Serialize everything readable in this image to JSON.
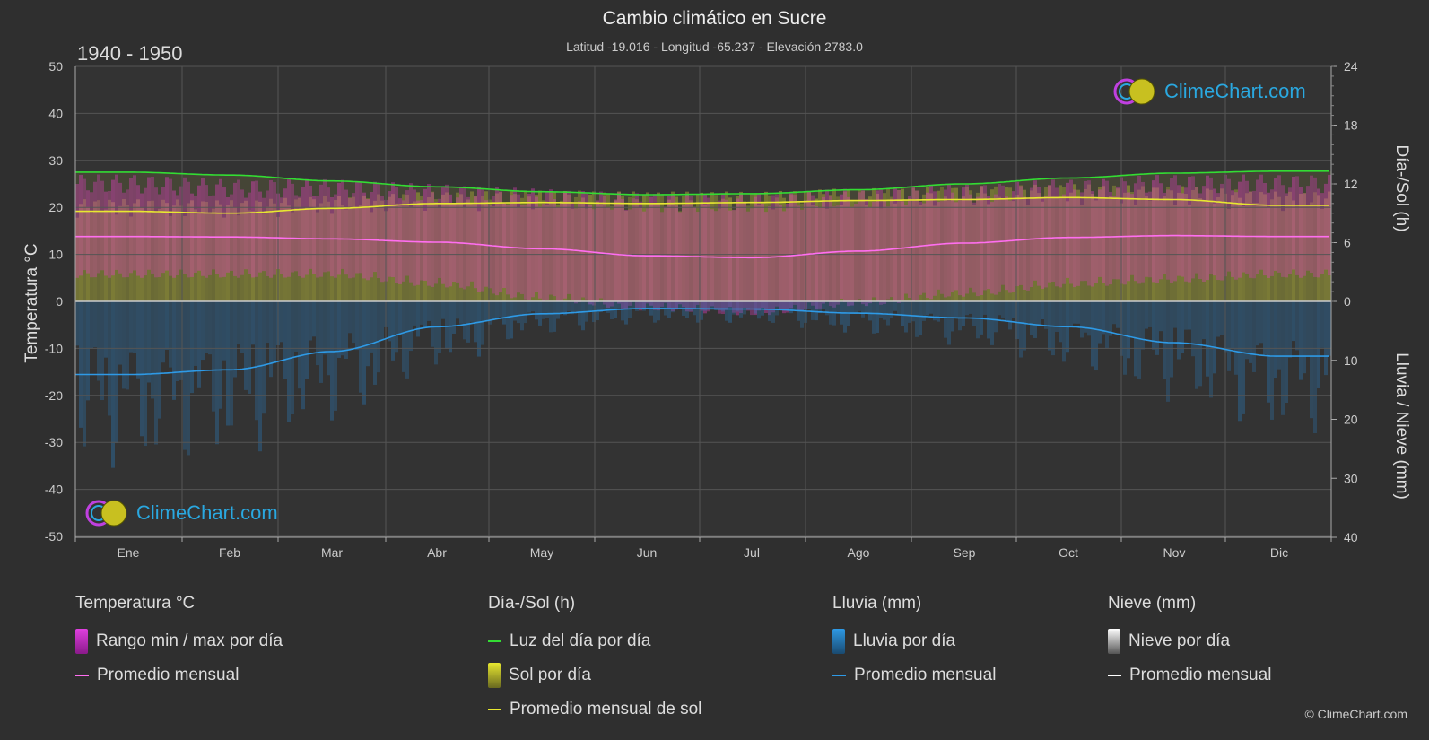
{
  "header": {
    "title": "Cambio climático en Sucre",
    "subtitle": "Latitud -19.016 - Longitud -65.237 - Elevación 2783.0",
    "period": "1940 - 1950"
  },
  "axes": {
    "left_label": "Temperatura °C",
    "right_top_label": "Día-/Sol (h)",
    "right_bottom_label": "Lluvia / Nieve (mm)"
  },
  "logo": {
    "text": "ClimeChart.com"
  },
  "copyright": "© ClimeChart.com",
  "legend": {
    "temperature": {
      "title": "Temperatura °C",
      "range": "Rango min / max por día",
      "avg": "Promedio mensual"
    },
    "daysun": {
      "title": "Día-/Sol (h)",
      "daylight": "Luz del día por día",
      "sun": "Sol por día",
      "sun_avg": "Promedio mensual de sol"
    },
    "rain": {
      "title": "Lluvia (mm)",
      "daily": "Lluvia por día",
      "avg": "Promedio mensual"
    },
    "snow": {
      "title": "Nieve (mm)",
      "daily": "Nieve por día",
      "avg": "Promedio mensual"
    }
  },
  "colors": {
    "background": "#2f2f2f",
    "temp_range": "#d93fb8",
    "temp_avg": "#ff6ef0",
    "daylight": "#33dd33",
    "sun": "#b8b83a",
    "sun_avg": "#e8e830",
    "rain": "#2a82c8",
    "rain_avg": "#2e9ae6",
    "snow": "#ffffff",
    "logo_text": "#2aa8e0"
  },
  "chart_data": {
    "type": "line",
    "categories": [
      "Ene",
      "Feb",
      "Mar",
      "Abr",
      "May",
      "Jun",
      "Jul",
      "Ago",
      "Sep",
      "Oct",
      "Nov",
      "Dic"
    ],
    "left_axis": {
      "label": "Temperatura °C",
      "ylim": [
        -50,
        50
      ],
      "ticks": [
        50,
        40,
        30,
        20,
        10,
        0,
        -10,
        -20,
        -30,
        -40,
        -50
      ]
    },
    "right_top_axis": {
      "label": "Día-/Sol (h)",
      "ylim": [
        0,
        24
      ],
      "ticks": [
        24,
        18,
        12,
        6,
        0
      ]
    },
    "right_bottom_axis": {
      "label": "Lluvia / Nieve (mm)",
      "ylim": [
        0,
        40
      ],
      "ticks": [
        0,
        10,
        20,
        30,
        40
      ]
    },
    "series": [
      {
        "name": "Luz del día por día",
        "axis": "hours",
        "values": [
          13.2,
          12.9,
          12.3,
          11.7,
          11.2,
          10.9,
          11.0,
          11.4,
          12.0,
          12.6,
          13.1,
          13.3
        ]
      },
      {
        "name": "Promedio mensual de sol",
        "axis": "hours",
        "values": [
          9.2,
          9.0,
          9.5,
          10.0,
          10.1,
          10.0,
          10.1,
          10.3,
          10.4,
          10.6,
          10.4,
          9.8
        ]
      },
      {
        "name": "Promedio mensual",
        "axis": "temperature",
        "values": [
          13.8,
          13.7,
          13.3,
          12.6,
          11.2,
          9.7,
          9.3,
          10.7,
          12.4,
          13.6,
          14.0,
          13.8
        ]
      },
      {
        "name": "Promedio mensual (Lluvia)",
        "axis": "precip",
        "values": [
          12.4,
          11.6,
          8.5,
          4.3,
          2.1,
          1.2,
          1.3,
          2.0,
          2.8,
          4.3,
          7.0,
          9.3
        ]
      }
    ],
    "temp_range_approx": {
      "max": [
        25,
        24,
        24,
        23,
        22,
        21,
        21,
        22,
        23,
        24,
        25,
        25
      ],
      "min": [
        7,
        7,
        7,
        5,
        2,
        0,
        -1,
        1,
        3,
        5,
        6,
        7
      ]
    },
    "sun_daily_approx": [
      9.5,
      9.4,
      9.8,
      10.2,
      10.3,
      10.2,
      10.2,
      10.5,
      10.7,
      10.9,
      10.7,
      10.2
    ],
    "rain_daily_approx": [
      15,
      14,
      11,
      6,
      3,
      2,
      2,
      3,
      4,
      6,
      9,
      12
    ],
    "grid": true
  }
}
